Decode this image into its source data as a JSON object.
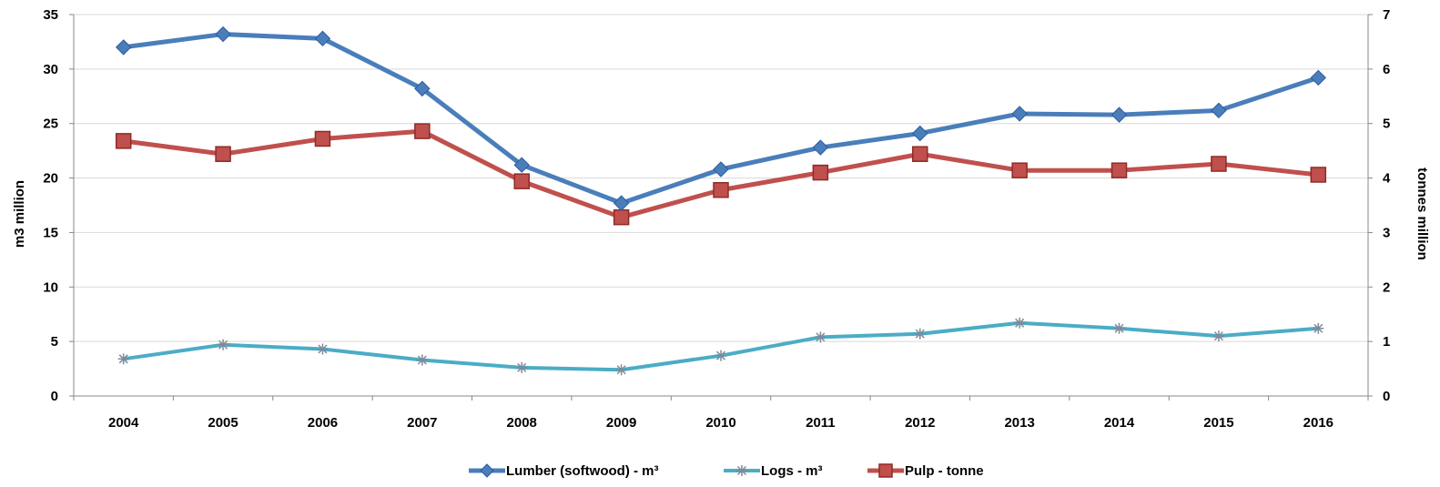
{
  "chart_data": {
    "type": "line",
    "categories": [
      "2004",
      "2005",
      "2006",
      "2007",
      "2008",
      "2009",
      "2010",
      "2011",
      "2012",
      "2013",
      "2014",
      "2015",
      "2016"
    ],
    "y_left": {
      "label": "m3 million",
      "range": [
        0,
        35
      ],
      "ticks": [
        "0",
        "5",
        "10",
        "15",
        "20",
        "25",
        "30",
        "35"
      ],
      "tick_values": [
        0,
        5,
        10,
        15,
        20,
        25,
        30,
        35
      ]
    },
    "y_right": {
      "label": "tonnes million",
      "range": [
        0,
        7
      ],
      "ticks": [
        "0",
        "1",
        "2",
        "3",
        "4",
        "5",
        "6",
        "7"
      ],
      "tick_values": [
        0,
        1,
        2,
        3,
        4,
        5,
        6,
        7
      ]
    },
    "grid": "horizontal",
    "legend_position": "bottom",
    "series": [
      {
        "name": "Lumber (softwood) - m³",
        "axis": "left",
        "color": "#4a7ebb",
        "marker": "diamond",
        "values": [
          32.0,
          33.2,
          32.8,
          28.2,
          21.2,
          17.7,
          20.8,
          22.8,
          24.1,
          25.9,
          25.8,
          26.2,
          29.2
        ]
      },
      {
        "name": "Logs - m³",
        "axis": "left",
        "color": "#4bacc6",
        "marker": "star",
        "values": [
          3.4,
          4.7,
          4.3,
          3.3,
          2.6,
          2.4,
          3.7,
          5.4,
          5.7,
          6.7,
          6.2,
          5.5,
          6.2
        ]
      },
      {
        "name": "Pulp - tonne",
        "axis": "right",
        "color": "#c0504d",
        "marker": "square",
        "values": [
          4.68,
          4.44,
          4.72,
          4.86,
          3.94,
          3.28,
          3.78,
          4.1,
          4.44,
          4.14,
          4.14,
          4.26,
          4.06
        ]
      }
    ]
  }
}
